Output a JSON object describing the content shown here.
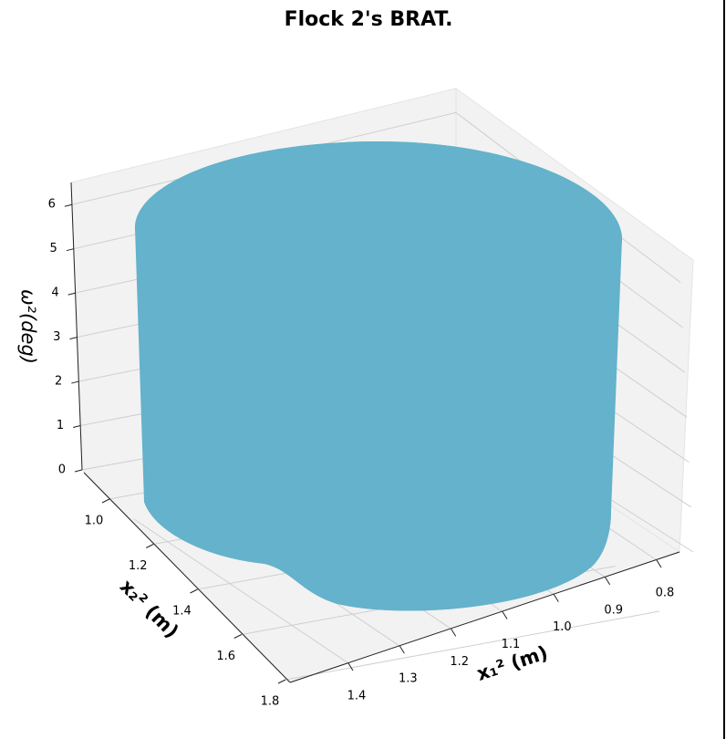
{
  "chart_data": {
    "type": "surface3d",
    "title": "Flock 2's BRAT.",
    "xlabel": "x₁² (m)",
    "ylabel": "x₂² (m)",
    "zlabel": "ω²(deg)",
    "color": "#64b2cb",
    "xticks": [
      0.8,
      0.9,
      {
        "value": 1.0,
        "label": "1.0"
      },
      1.1,
      1.2,
      1.3,
      1.4
    ],
    "yticks": [
      {
        "value": 1.0,
        "label": "1.0"
      },
      1.2,
      1.4,
      1.6,
      1.8
    ],
    "zticks": [
      0,
      1,
      2,
      3,
      4,
      5,
      6
    ],
    "zlim": [
      0,
      6.5
    ],
    "grid": true
  }
}
